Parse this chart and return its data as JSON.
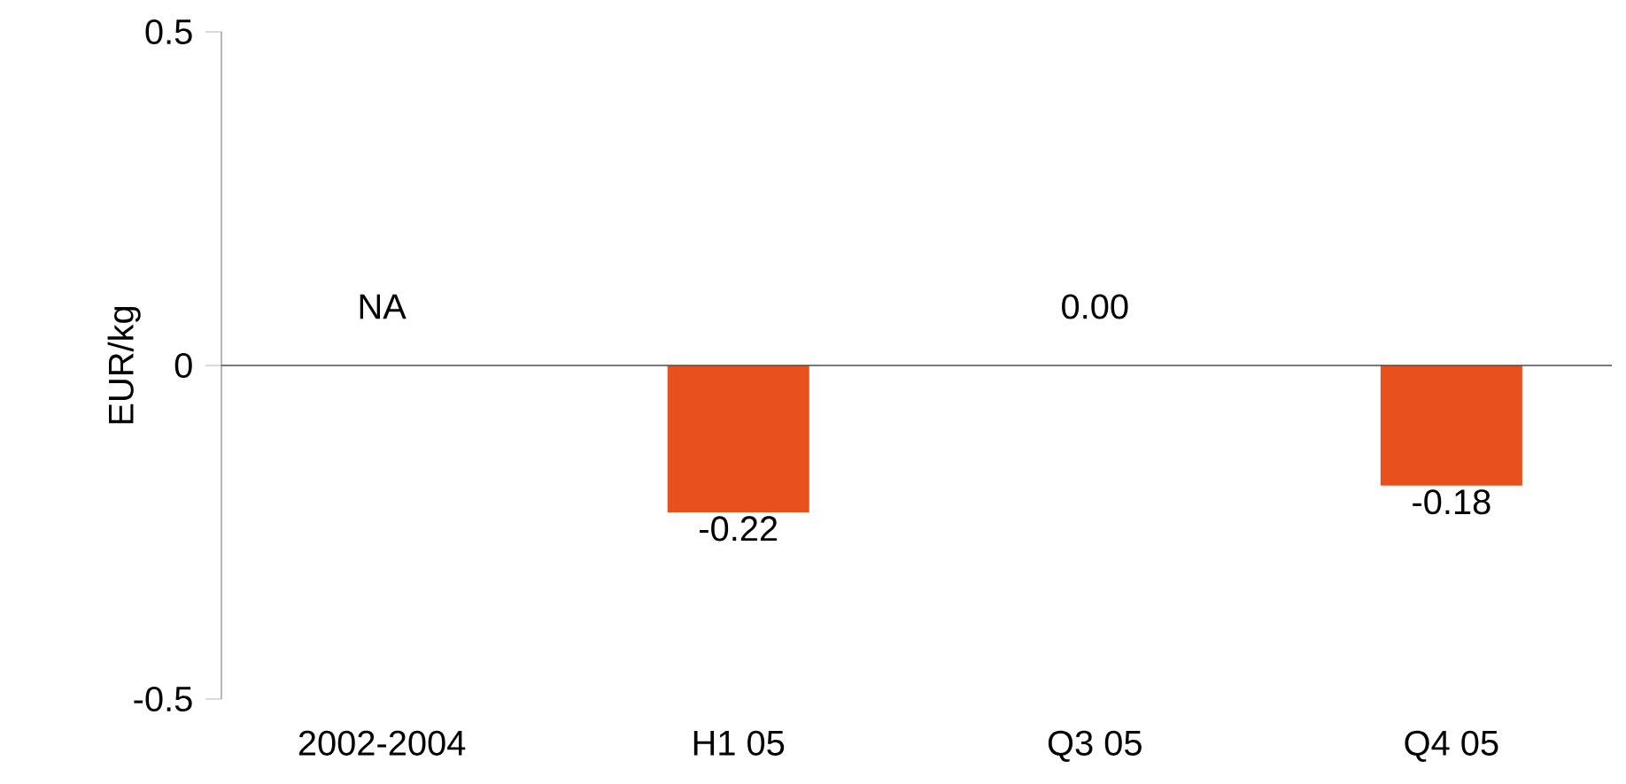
{
  "chart_data": {
    "type": "bar",
    "ylabel": "EUR/kg",
    "categories": [
      "2002-2004",
      "H1 05",
      "Q3 05",
      "Q4 05"
    ],
    "values": [
      null,
      -0.22,
      0.0,
      -0.18
    ],
    "value_labels": [
      "NA",
      "-0.22",
      "0.00",
      "-0.18"
    ],
    "color": "#e8501e",
    "ylim": [
      -0.5,
      0.5
    ],
    "yticks": [
      -0.5,
      0,
      0.5
    ]
  }
}
